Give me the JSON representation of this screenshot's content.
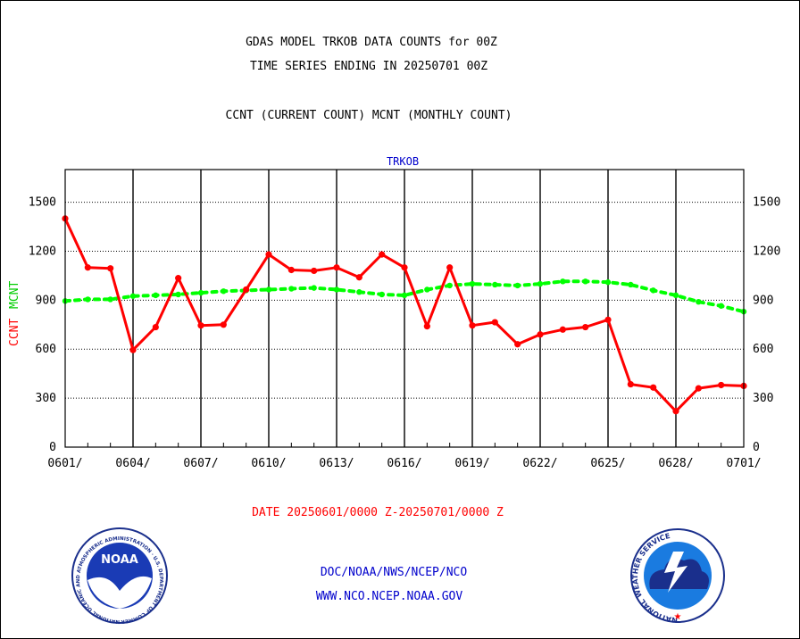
{
  "header": {
    "title_line1": "GDAS MODEL TRKOB DATA COUNTS for 00Z",
    "title_line2": "TIME SERIES ENDING IN 20250701 00Z",
    "subtitle": "CCNT (CURRENT COUNT) MCNT (MONTHLY COUNT)"
  },
  "chart_data": {
    "type": "line",
    "title": "TRKOB",
    "ylabel_left": "CCNT",
    "ylabel_left2": "MCNT",
    "xlabel": "DATE 20250601/0000 Z-20250701/0000 Z",
    "ylim": [
      0,
      1700
    ],
    "yticks": [
      0,
      300,
      600,
      900,
      1200,
      1500
    ],
    "ytick_labels": [
      "0",
      "300",
      "600",
      "900",
      "1200",
      "1500"
    ],
    "xtick_labels": [
      "0601/",
      "0604/",
      "0607/",
      "0610/",
      "0613/",
      "0616/",
      "0619/",
      "0622/",
      "0625/",
      "0628/",
      "0701/"
    ],
    "xtick_days": [
      0,
      3,
      6,
      9,
      12,
      15,
      18,
      21,
      24,
      27,
      30
    ],
    "grid": true,
    "colors": {
      "ccnt": "#ff0000",
      "mcnt": "#00ff00",
      "title": "#0000cc",
      "date": "#ff0000"
    },
    "x": [
      0,
      1,
      2,
      3,
      4,
      5,
      6,
      7,
      8,
      9,
      10,
      11,
      12,
      13,
      14,
      15,
      16,
      17,
      18,
      19,
      20,
      21,
      22,
      23,
      24,
      25,
      26,
      27,
      28,
      29,
      30
    ],
    "series": [
      {
        "name": "CCNT",
        "values": [
          1400,
          1100,
          1095,
          595,
          735,
          1035,
          745,
          750,
          965,
          1180,
          1085,
          1080,
          1100,
          1040,
          1180,
          1100,
          740,
          1100,
          745,
          765,
          630,
          690,
          720,
          735,
          780,
          385,
          365,
          220,
          360,
          380,
          375
        ]
      },
      {
        "name": "MCNT",
        "values": [
          895,
          905,
          905,
          925,
          930,
          935,
          945,
          955,
          960,
          965,
          970,
          975,
          965,
          950,
          935,
          930,
          965,
          990,
          1000,
          995,
          990,
          1000,
          1015,
          1015,
          1010,
          995,
          960,
          930,
          890,
          865,
          830
        ]
      }
    ]
  },
  "footer": {
    "line1": "DOC/NOAA/NWS/NCEP/NCO",
    "line2": "WWW.NCO.NCEP.NOAA.GOV"
  },
  "logos": {
    "left": "noaa-logo",
    "left_text": "NOAA",
    "left_ring_text": "NATIONAL OCEANIC AND ATMOSPHERIC ADMINISTRATION · U.S. DEPARTMENT OF COMMERCE",
    "right": "nws-logo",
    "right_ring_text": "NATIONAL WEATHER SERVICE"
  }
}
